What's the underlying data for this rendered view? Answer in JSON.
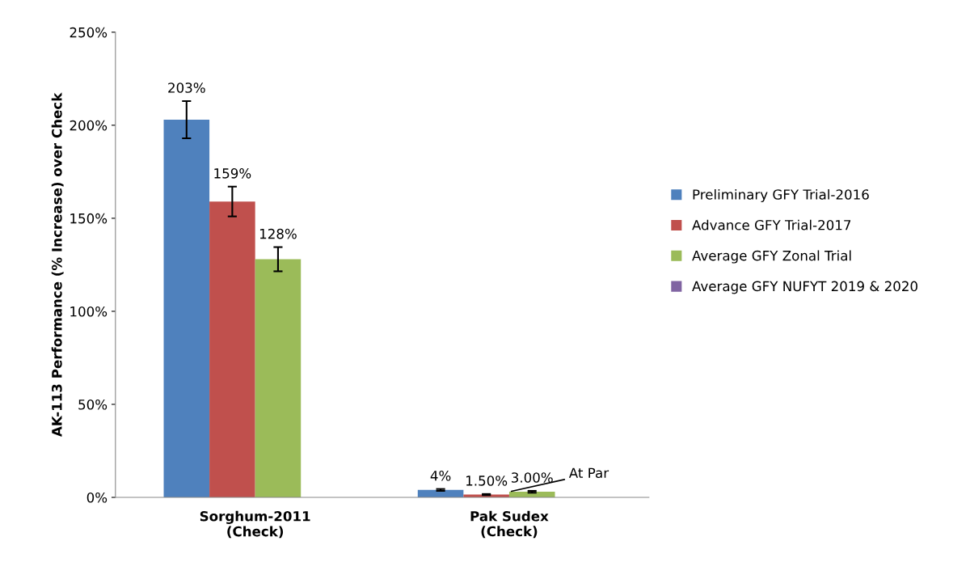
{
  "chart_data": {
    "type": "bar",
    "ylabel": "AK-113 Performance (% Increase) over Check",
    "categories": [
      "Sorghum-2011\n(Check)",
      "Pak Sudex\n(Check)"
    ],
    "series": [
      {
        "name": "Preliminary GFY Trial-2016",
        "color": "#4f81bd",
        "values": [
          203,
          4
        ],
        "errors": [
          10,
          0.5
        ],
        "value_labels": [
          "203%",
          "4%"
        ]
      },
      {
        "name": "Advance GFY Trial-2017",
        "color": "#c0504d",
        "values": [
          159,
          1.5
        ],
        "errors": [
          8,
          0.3
        ],
        "value_labels": [
          "159%",
          "1.50%"
        ]
      },
      {
        "name": "Average GFY Zonal Trial",
        "color": "#9bbb59",
        "values": [
          128,
          3
        ],
        "errors": [
          6.5,
          0.5
        ],
        "value_labels": [
          "128%",
          "3.00%"
        ]
      },
      {
        "name": "Average GFY NUFYT 2019 & 2020",
        "color": "#8064a2",
        "values": [
          null,
          0
        ]
      }
    ],
    "annotations": [
      {
        "text": "At Par",
        "x": "Pak Sudex\n(Check)",
        "y": 3
      }
    ],
    "ylim": [
      0,
      250
    ],
    "yticks": [
      {
        "value": 0,
        "label": "0%"
      },
      {
        "value": 50,
        "label": "50%"
      },
      {
        "value": 100,
        "label": "100%"
      },
      {
        "value": 150,
        "label": "150%"
      },
      {
        "value": 200,
        "label": "200%"
      },
      {
        "value": 250,
        "label": "250%"
      }
    ],
    "grid": false,
    "legend": "right"
  }
}
